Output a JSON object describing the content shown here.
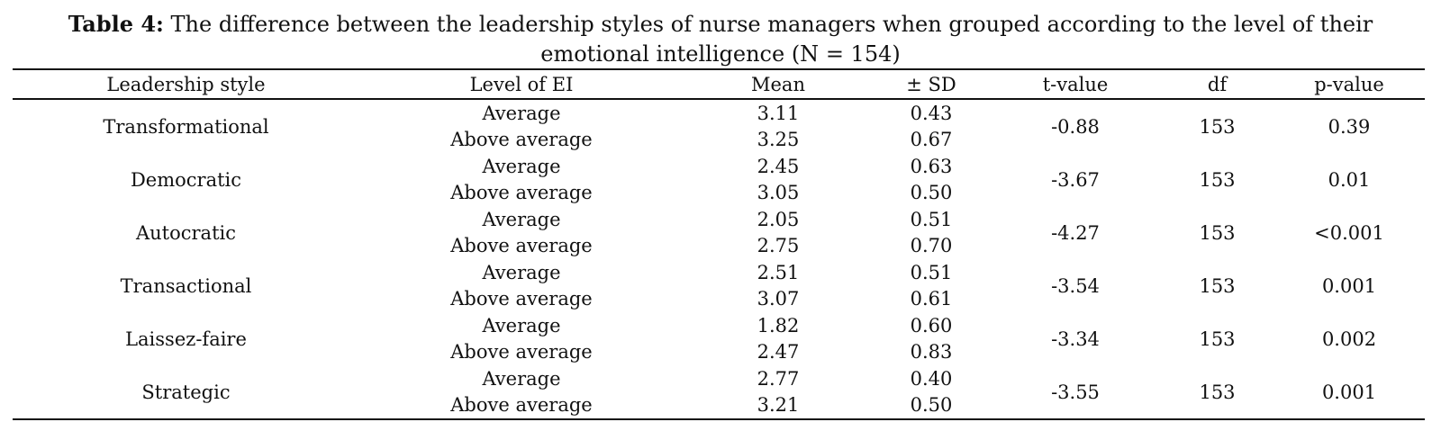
{
  "caption": {
    "label": "Table 4:",
    "text": " The difference between the leadership styles of nurse managers when grouped according to the level of their emotional intelligence (N = 154)"
  },
  "table": {
    "headers": [
      "Leadership style",
      "Level of EI",
      "Mean",
      "± SD",
      "t-value",
      "df",
      "p-value"
    ],
    "rows": [
      {
        "style": "Transformational",
        "levels": [
          "Average",
          "Above average"
        ],
        "means": [
          "3.11",
          "3.25"
        ],
        "sds": [
          "0.43",
          "0.67"
        ],
        "t": "-0.88",
        "df": "153",
        "p": "0.39"
      },
      {
        "style": "Democratic",
        "levels": [
          "Average",
          "Above average"
        ],
        "means": [
          "2.45",
          "3.05"
        ],
        "sds": [
          "0.63",
          "0.50"
        ],
        "t": "-3.67",
        "df": "153",
        "p": "0.01"
      },
      {
        "style": "Autocratic",
        "levels": [
          "Average",
          "Above average"
        ],
        "means": [
          "2.05",
          "2.75"
        ],
        "sds": [
          "0.51",
          "0.70"
        ],
        "t": "-4.27",
        "df": "153",
        "p": "<0.001"
      },
      {
        "style": "Transactional",
        "levels": [
          "Average",
          "Above average"
        ],
        "means": [
          "2.51",
          "3.07"
        ],
        "sds": [
          "0.51",
          "0.61"
        ],
        "t": "-3.54",
        "df": "153",
        "p": "0.001"
      },
      {
        "style": "Laissez-faire",
        "levels": [
          "Average",
          "Above average"
        ],
        "means": [
          "1.82",
          "2.47"
        ],
        "sds": [
          "0.60",
          "0.83"
        ],
        "t": "-3.34",
        "df": "153",
        "p": "0.002"
      },
      {
        "style": "Strategic",
        "levels": [
          "Average",
          "Above average"
        ],
        "means": [
          "2.77",
          "3.21"
        ],
        "sds": [
          "0.40",
          "0.50"
        ],
        "t": "-3.55",
        "df": "153",
        "p": "0.001"
      }
    ]
  }
}
